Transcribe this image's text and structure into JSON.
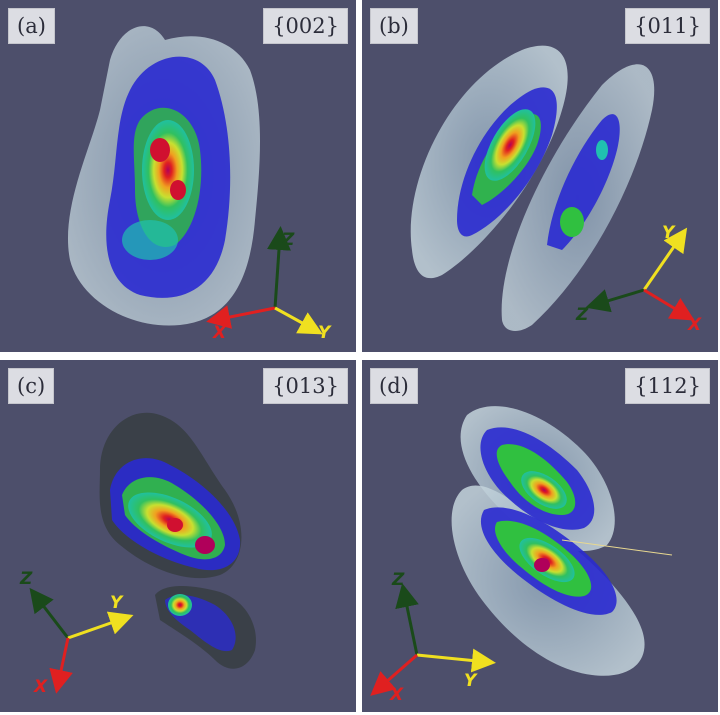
{
  "panels": [
    {
      "letter": "(a)",
      "plane": "{002}"
    },
    {
      "letter": "(b)",
      "plane": "{011}"
    },
    {
      "letter": "(c)",
      "plane": "{013}"
    },
    {
      "letter": "(d)",
      "plane": "{112}"
    }
  ],
  "axes": {
    "x": "X",
    "y": "Y",
    "z": "Z"
  },
  "colors": {
    "background": "#4d4f6b",
    "x_axis": "#e02020",
    "y_axis": "#f0e020",
    "z_axis": "#1a4a1a",
    "outer_shell": "#a8bcc8",
    "blue": "#2a2ad0",
    "green": "#30c040",
    "yellow": "#e8e020",
    "red": "#e02020"
  }
}
